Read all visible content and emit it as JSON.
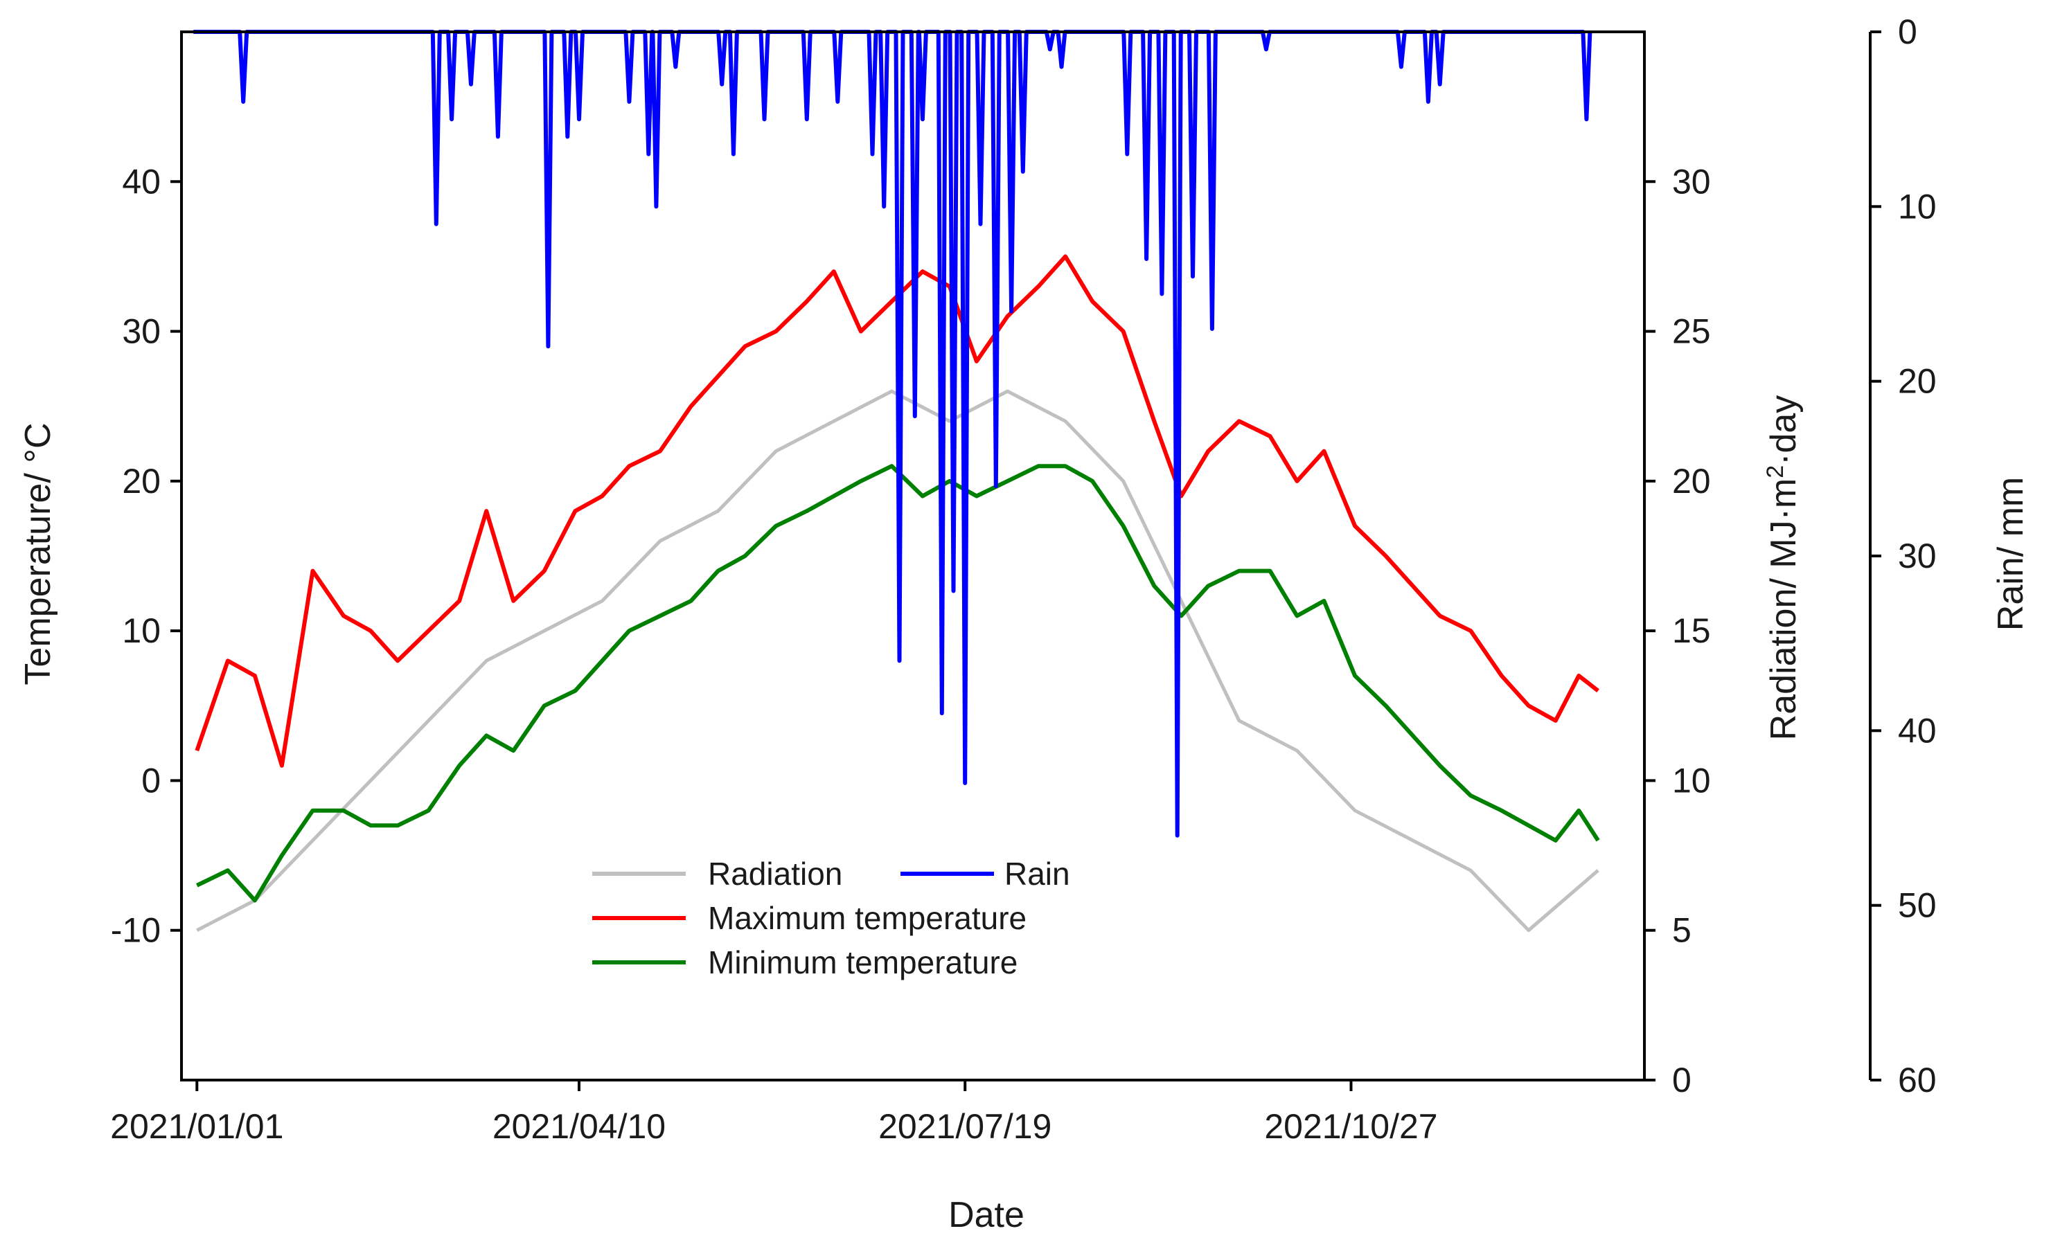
{
  "chart_data": {
    "type": "line",
    "xlabel": "Date",
    "x_ticks": [
      {
        "label": "2021/01/01",
        "day": 0
      },
      {
        "label": "2021/04/10",
        "day": 99
      },
      {
        "label": "2021/07/19",
        "day": 199
      },
      {
        "label": "2021/10/27",
        "day": 299
      }
    ],
    "x_range": [
      -4,
      375
    ],
    "axes": {
      "temperature": {
        "label": "Temperature/ °C",
        "ylim": [
          -20,
          50
        ],
        "ticks": [
          -10,
          0,
          10,
          20,
          30,
          40
        ],
        "tick_labels": [
          "-10",
          "0",
          "10",
          "20",
          "30",
          "40"
        ]
      },
      "radiation": {
        "label_main": "Radiation/ MJ·m",
        "label_sup": "2",
        "label_tail": "·day",
        "ylim": [
          0,
          35
        ],
        "ticks": [
          0,
          5,
          10,
          15,
          20,
          25,
          30
        ],
        "tick_labels": [
          "0",
          "5",
          "10",
          "15",
          "20",
          "25",
          "30"
        ]
      },
      "rain": {
        "label": "Rain/ mm",
        "ylim": [
          0,
          60
        ],
        "inverted": true,
        "ticks": [
          0,
          10,
          20,
          30,
          40,
          50,
          60
        ],
        "tick_labels": [
          "0",
          "10",
          "20",
          "30",
          "40",
          "50",
          "60"
        ]
      }
    },
    "legend": {
      "position": "lower-center",
      "entries": [
        {
          "key": "radiation",
          "label": "Radiation",
          "color": "#c0c0c0"
        },
        {
          "key": "rain",
          "label": "Rain",
          "color": "#0000ff"
        },
        {
          "key": "tmax",
          "label": "Maximum temperature",
          "color": "#ff0000"
        },
        {
          "key": "tmin",
          "label": "Minimum temperature",
          "color": "#008000"
        }
      ]
    },
    "series": [
      {
        "name": "Radiation",
        "key": "radiation",
        "axis": "radiation",
        "color": "#c0c0c0",
        "days": [
          0,
          15,
          30,
          45,
          60,
          75,
          90,
          105,
          120,
          135,
          150,
          165,
          180,
          195,
          210,
          225,
          240,
          255,
          270,
          285,
          300,
          315,
          330,
          345,
          363
        ],
        "values": [
          5,
          6,
          8,
          10,
          12,
          14,
          15,
          16,
          18,
          19,
          21,
          22,
          23,
          22,
          23,
          22,
          20,
          16,
          12,
          11,
          9,
          8,
          7,
          5,
          7
        ]
      },
      {
        "name": "Maximum temperature",
        "key": "tmax",
        "axis": "temperature",
        "color": "#ff0000",
        "days": [
          0,
          8,
          15,
          22,
          30,
          38,
          45,
          52,
          60,
          68,
          75,
          82,
          90,
          98,
          105,
          112,
          120,
          128,
          135,
          142,
          150,
          158,
          165,
          172,
          180,
          188,
          195,
          202,
          210,
          218,
          225,
          232,
          240,
          248,
          255,
          262,
          270,
          278,
          285,
          292,
          300,
          308,
          315,
          322,
          330,
          338,
          345,
          352,
          358,
          363
        ],
        "values": [
          2,
          8,
          7,
          1,
          14,
          11,
          10,
          8,
          10,
          12,
          18,
          12,
          14,
          18,
          19,
          21,
          22,
          25,
          27,
          29,
          30,
          32,
          34,
          30,
          32,
          34,
          33,
          28,
          31,
          33,
          35,
          32,
          30,
          24,
          19,
          22,
          24,
          23,
          20,
          22,
          17,
          15,
          13,
          11,
          10,
          7,
          5,
          4,
          7,
          6
        ]
      },
      {
        "name": "Minimum temperature",
        "key": "tmin",
        "axis": "temperature",
        "color": "#008000",
        "days": [
          0,
          8,
          15,
          22,
          30,
          38,
          45,
          52,
          60,
          68,
          75,
          82,
          90,
          98,
          105,
          112,
          120,
          128,
          135,
          142,
          150,
          158,
          165,
          172,
          180,
          188,
          195,
          202,
          210,
          218,
          225,
          232,
          240,
          248,
          255,
          262,
          270,
          278,
          285,
          292,
          300,
          308,
          315,
          322,
          330,
          338,
          345,
          352,
          358,
          363
        ],
        "values": [
          -7,
          -6,
          -8,
          -5,
          -2,
          -2,
          -3,
          -3,
          -2,
          1,
          3,
          2,
          5,
          6,
          8,
          10,
          11,
          12,
          14,
          15,
          17,
          18,
          19,
          20,
          21,
          19,
          20,
          19,
          20,
          21,
          21,
          20,
          17,
          13,
          11,
          13,
          14,
          14,
          11,
          12,
          7,
          5,
          3,
          1,
          -1,
          -2,
          -3,
          -4,
          -2,
          -4
        ]
      },
      {
        "name": "Rain",
        "key": "rain",
        "axis": "rain",
        "color": "#0000ff",
        "days": [
          0,
          12,
          45,
          62,
          66,
          71,
          78,
          91,
          96,
          99,
          112,
          117,
          119,
          124,
          136,
          139,
          147,
          158,
          166,
          175,
          178,
          182,
          186,
          188,
          193,
          196,
          199,
          203,
          207,
          211,
          214,
          221,
          224,
          241,
          246,
          250,
          254,
          258,
          263,
          277,
          282,
          293,
          312,
          319,
          322,
          340,
          360
        ],
        "values": [
          0,
          4,
          0,
          11,
          5,
          3,
          6,
          18,
          6,
          5,
          4,
          7,
          10,
          2,
          3,
          7,
          5,
          5,
          4,
          7,
          10,
          36,
          22,
          5,
          39,
          32,
          43,
          11,
          26,
          16,
          8,
          1,
          2,
          7,
          13,
          15,
          46,
          14,
          17,
          1,
          0,
          0,
          2,
          4,
          3,
          0,
          5
        ]
      }
    ]
  }
}
